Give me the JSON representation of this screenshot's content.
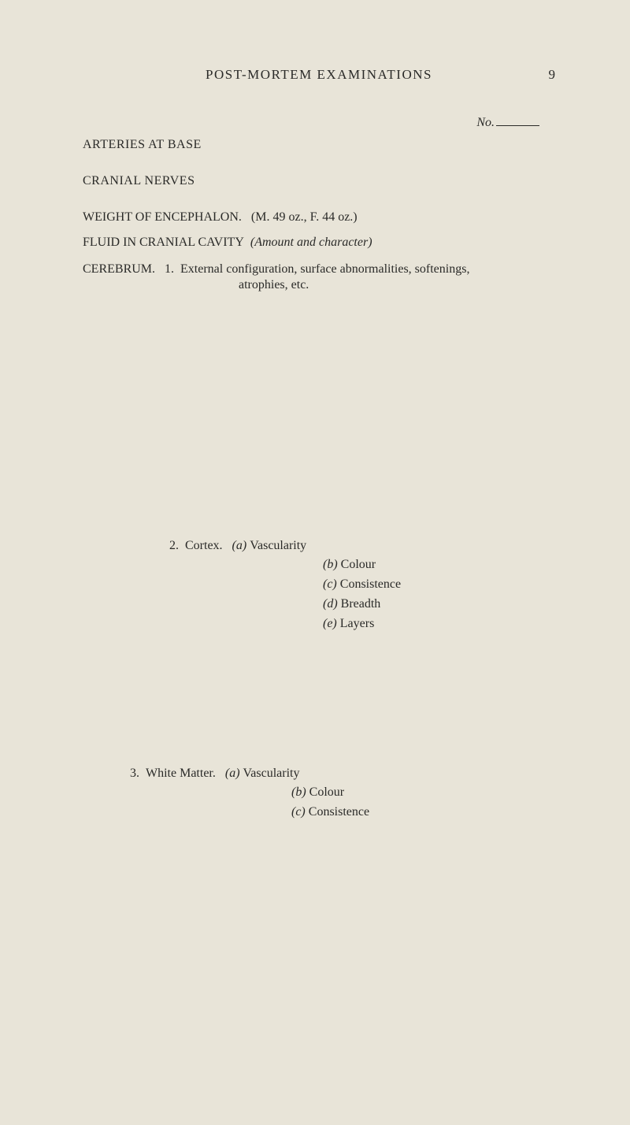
{
  "header": {
    "running_title": "POST-MORTEM EXAMINATIONS",
    "page_number": "9",
    "no_label": "No."
  },
  "sections": {
    "arteries": "ARTERIES AT BASE",
    "cranial_nerves": "CRANIAL NERVES",
    "weight_label": "WEIGHT OF ENCEPHALON.",
    "weight_values": "(M. 49 oz., F. 44 oz.)",
    "fluid_label": "FLUID IN CRANIAL CAVITY",
    "fluid_paren": "(Amount and character)",
    "cerebrum_label": "CEREBRUM.",
    "cerebrum_num": "1.",
    "cerebrum_line1": "External configuration, surface abnormalities, softenings,",
    "cerebrum_line2": "atrophies, etc."
  },
  "cortex": {
    "number": "2.",
    "label": "Cortex.",
    "items": {
      "a_l": "(a)",
      "a_t": "Vascularity",
      "b_l": "(b)",
      "b_t": "Colour",
      "c_l": "(c)",
      "c_t": "Consistence",
      "d_l": "(d)",
      "d_t": "Breadth",
      "e_l": "(e)",
      "e_t": "Layers"
    }
  },
  "white_matter": {
    "number": "3.",
    "label": "White Matter.",
    "items": {
      "a_l": "(a)",
      "a_t": "Vascularity",
      "b_l": "(b)",
      "b_t": "Colour",
      "c_l": "(c)",
      "c_t": "Consistence"
    }
  }
}
